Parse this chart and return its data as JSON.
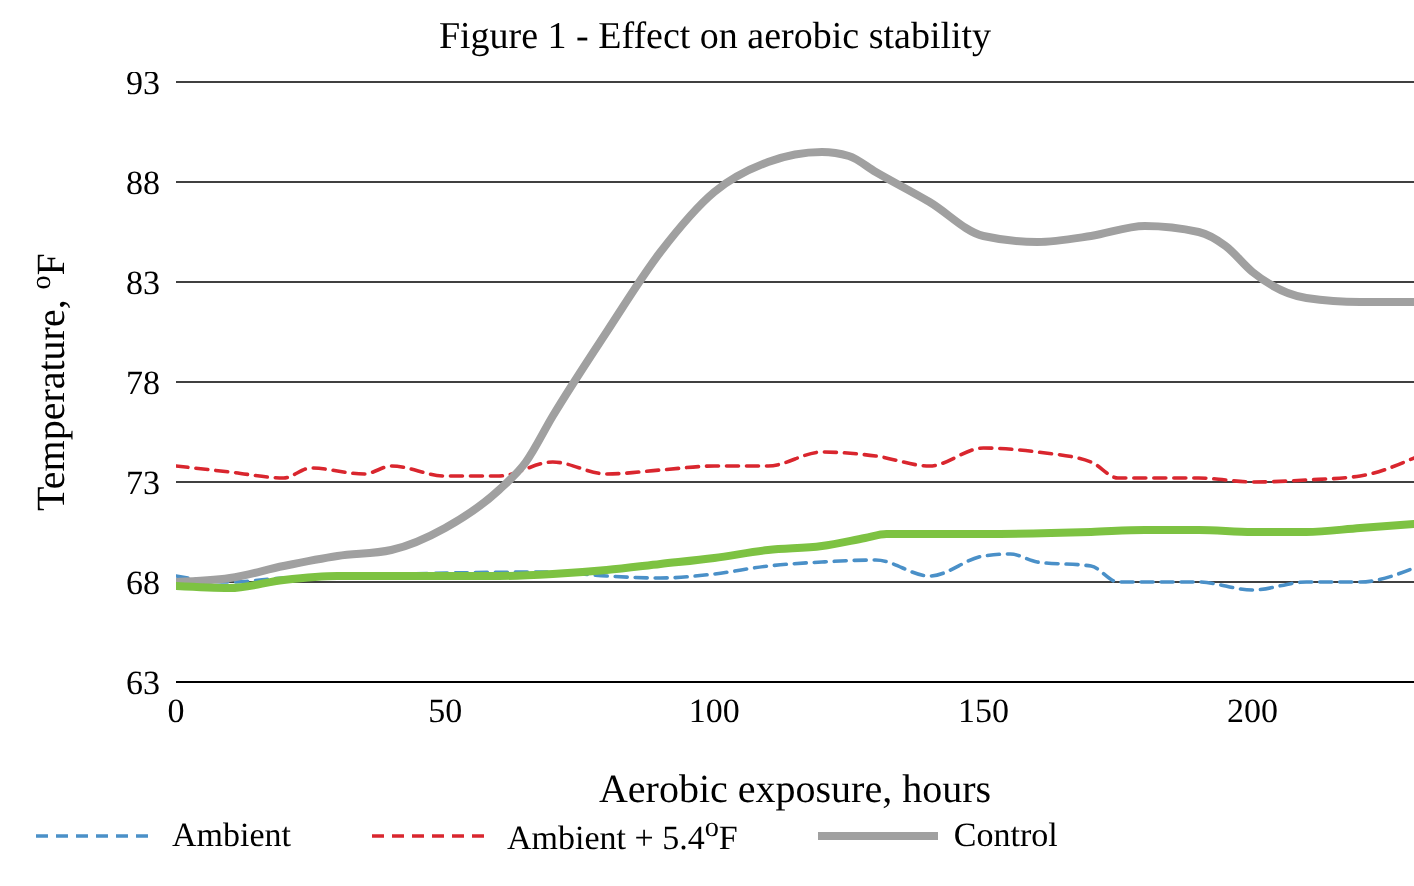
{
  "chart_data": {
    "type": "line",
    "title": "Figure 1  -  Effect on aerobic stability",
    "xlabel": "Aerobic exposure, hours",
    "ylabel": "Temperature, $^{o}$F",
    "xlim": [
      0,
      230
    ],
    "xticks": [
      0,
      50,
      100,
      150,
      200
    ],
    "ylim": [
      63,
      93
    ],
    "yticks": [
      63,
      68,
      73,
      78,
      83,
      88,
      93
    ],
    "grid": "y",
    "legend": "bottom",
    "marker": "none",
    "series": [
      {
        "name": "Ambient",
        "color": "#4a90c8",
        "line_style": "dashed",
        "x": [
          0,
          10,
          20,
          30,
          40,
          50,
          60,
          70,
          80,
          90,
          100,
          110,
          120,
          130,
          140,
          150,
          155,
          160,
          170,
          175,
          190,
          200,
          210,
          220,
          230
        ],
        "values": [
          68.3,
          68,
          68.2,
          68.3,
          null,
          null,
          null,
          68.5,
          68.3,
          68.2,
          68.4,
          68.8,
          69,
          69.1,
          68.3,
          69.3,
          69.4,
          69,
          68.8,
          68,
          68,
          67.6,
          68,
          68,
          68.7
        ]
      },
      {
        "name": "Ambient + 5.4$^{o}$F",
        "color": "#d9262e",
        "line_style": "dashed",
        "x": [
          0,
          10,
          20,
          25,
          35,
          40,
          50,
          60,
          70,
          80,
          90,
          100,
          110,
          120,
          130,
          140,
          150,
          160,
          170,
          175,
          190,
          200,
          210,
          220,
          230
        ],
        "values": [
          73.8,
          73.5,
          73.2,
          73.7,
          73.4,
          73.8,
          73.3,
          73.3,
          74,
          73.4,
          73.6,
          73.8,
          73.8,
          74.5,
          74.3,
          73.8,
          74.7,
          74.5,
          74,
          73.2,
          73.2,
          73,
          73.1,
          73.3,
          74.2
        ]
      },
      {
        "name": "Control",
        "color": "#a0a0a0",
        "line_style": "solid",
        "x": [
          0,
          10,
          20,
          30,
          40,
          50,
          60,
          65,
          70,
          80,
          90,
          100,
          110,
          120,
          125,
          130,
          140,
          150,
          160,
          170,
          180,
          190,
          195,
          200,
          210,
          220,
          230
        ],
        "values": [
          68,
          68.2,
          68.8,
          69.3,
          69.6,
          70.7,
          72.6,
          74,
          76.3,
          80.5,
          84.5,
          87.5,
          89,
          89.5,
          89.3,
          88.5,
          87,
          85.3,
          85,
          85.3,
          85.8,
          85.5,
          84.8,
          83.5,
          82.2,
          82,
          82
        ]
      },
      {
        "color": "#7dc242",
        "line_style": "solid",
        "x": [
          0,
          10,
          20,
          30,
          40,
          60,
          70,
          80,
          90,
          100,
          110,
          120,
          128,
          132,
          150,
          170,
          180,
          190,
          200,
          210,
          220,
          230
        ],
        "values": [
          67.8,
          67.7,
          68.1,
          68.3,
          68.3,
          68.3,
          68.4,
          68.6,
          68.9,
          69.2,
          69.6,
          69.8,
          70.2,
          70.4,
          70.4,
          70.5,
          70.6,
          70.6,
          70.5,
          70.5,
          70.7,
          70.9
        ]
      }
    ]
  }
}
